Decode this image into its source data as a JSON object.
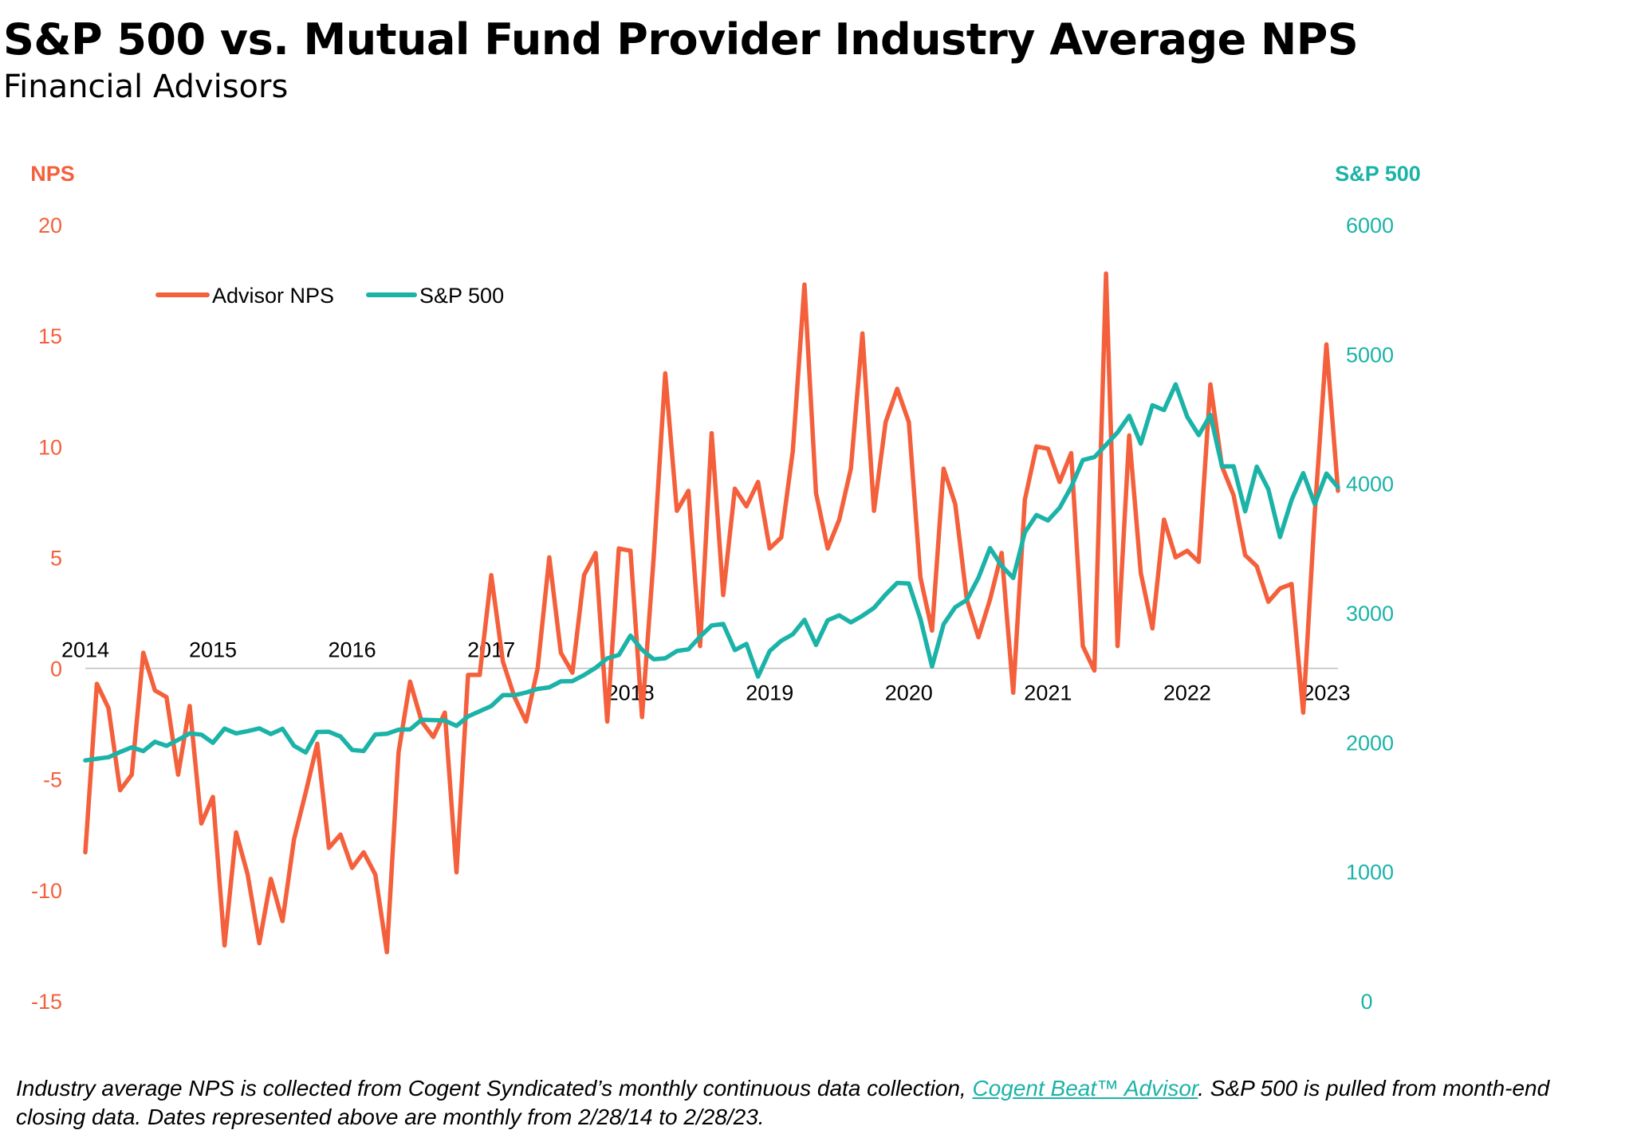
{
  "title": "S&P 500 vs. Mutual Fund Provider Industry Average NPS",
  "subtitle": "Financial Advisors",
  "footnote": {
    "text_before": "Industry average NPS is collected from Cogent Syndicated’s monthly continuous data collection, ",
    "link": "Cogent Beat™ Advisor",
    "text_after": ". S&P 500 is pulled from month-end closing data. Dates represented above are monthly from 2/28/14 to 2/28/23."
  },
  "colors": {
    "nps": "#F4603C",
    "sp500": "#1BB3A8",
    "axis": "#BFBFBF"
  },
  "chart_data": {
    "type": "line",
    "left_axis": {
      "label": "NPS",
      "range": [
        -15,
        20
      ],
      "ticks": [
        20,
        15,
        10,
        5,
        0,
        -5,
        -10,
        -15
      ]
    },
    "right_axis": {
      "label": "S&P 500",
      "range": [
        0,
        6000
      ],
      "ticks": [
        6000,
        5000,
        4000,
        3000,
        2000,
        1000,
        0
      ]
    },
    "x": {
      "start": "2014-02",
      "end": "2023-02",
      "year_labels": [
        "2014",
        "2015",
        "2016",
        "2017",
        "2018",
        "2019",
        "2020",
        "2021",
        "2022",
        "2023"
      ],
      "year_label_side": [
        "above",
        "above",
        "above",
        "above",
        "below",
        "below",
        "below",
        "below",
        "below",
        "below"
      ]
    },
    "legend": {
      "position": "top-left"
    },
    "series": [
      {
        "name": "Advisor NPS",
        "axis": "left",
        "values": [
          -8.3,
          -0.7,
          -1.8,
          -5.5,
          -4.8,
          0.7,
          -1.0,
          -1.3,
          -4.8,
          -1.7,
          -7.0,
          -5.8,
          -12.5,
          -7.4,
          -9.3,
          -12.4,
          -9.5,
          -11.4,
          -7.7,
          -5.6,
          -3.4,
          -8.1,
          -7.5,
          -9.0,
          -8.3,
          -9.3,
          -12.8,
          -3.8,
          -0.6,
          -2.4,
          -3.1,
          -2.0,
          -9.2,
          -0.3,
          -0.3,
          4.2,
          0.3,
          -1.3,
          -2.4,
          0.0,
          5.0,
          0.7,
          -0.2,
          4.2,
          5.2,
          -2.4,
          5.4,
          5.3,
          -2.2,
          5.0,
          13.3,
          7.1,
          8.0,
          1.0,
          10.6,
          3.3,
          8.1,
          7.3,
          8.4,
          5.4,
          5.9,
          9.8,
          17.3,
          7.9,
          5.4,
          6.7,
          9.0,
          15.1,
          7.1,
          11.1,
          12.6,
          11.1,
          4.1,
          1.7,
          9.0,
          7.4,
          3.1,
          1.4,
          3.1,
          5.2,
          -1.1,
          7.6,
          10.0,
          9.9,
          8.4,
          9.7,
          1.0,
          -0.1,
          17.8,
          1.0,
          10.5,
          4.3,
          1.8,
          6.7,
          5.0,
          5.3,
          4.8,
          12.8,
          9.1,
          7.8,
          5.1,
          4.6,
          3.0,
          3.6,
          3.8,
          -2.0,
          7.0,
          14.6,
          8.0
        ]
      },
      {
        "name": "S&P 500",
        "axis": "right",
        "values": [
          1859,
          1872,
          1884,
          1924,
          1960,
          1931,
          2003,
          1972,
          2018,
          2068,
          2059,
          1995,
          2105,
          2068,
          2086,
          2107,
          2063,
          2104,
          1972,
          1920,
          2079,
          2080,
          2044,
          1940,
          1932,
          2060,
          2065,
          2097,
          2099,
          2174,
          2171,
          2168,
          2126,
          2199,
          2239,
          2279,
          2364,
          2363,
          2384,
          2412,
          2424,
          2470,
          2472,
          2519,
          2575,
          2648,
          2674,
          2824,
          2714,
          2641,
          2648,
          2705,
          2718,
          2816,
          2902,
          2914,
          2712,
          2760,
          2507,
          2704,
          2784,
          2834,
          2946,
          2752,
          2942,
          2980,
          2926,
          2977,
          3038,
          3141,
          3231,
          3226,
          2954,
          2585,
          2912,
          3044,
          3100,
          3271,
          3500,
          3363,
          3270,
          3622,
          3756,
          3714,
          3811,
          3973,
          4181,
          4204,
          4298,
          4395,
          4523,
          4308,
          4605,
          4567,
          4766,
          4516,
          4374,
          4530,
          4132,
          4133,
          3785,
          4130,
          3955,
          3586,
          3872,
          4080,
          3840,
          4077,
          3970
        ]
      }
    ]
  }
}
